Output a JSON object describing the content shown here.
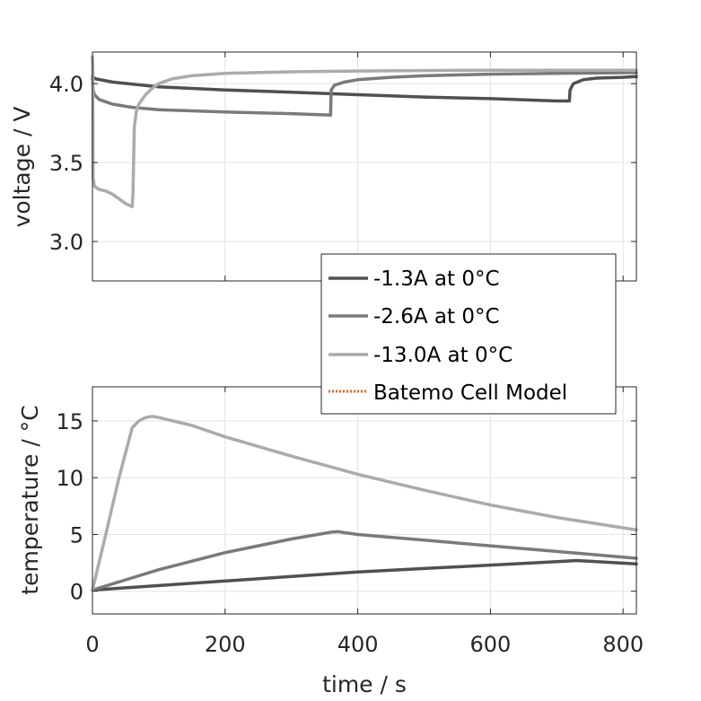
{
  "chart_data": [
    {
      "type": "line",
      "ylabel": "voltage / V",
      "xlim": [
        0,
        820
      ],
      "ylim": [
        2.75,
        4.2
      ],
      "yticks": [
        3.0,
        3.5,
        4.0
      ],
      "ytick_labels": [
        "3.0",
        "3.5",
        "4.0"
      ],
      "grid": true,
      "series": [
        {
          "name": "-1.3A at 0°C",
          "color": "#505050",
          "x": [
            0,
            1,
            5,
            30,
            100,
            200,
            300,
            400,
            500,
            600,
            700,
            719,
            720,
            725,
            740,
            760,
            800,
            820
          ],
          "y": [
            4.03,
            4.04,
            4.03,
            4.01,
            3.98,
            3.96,
            3.945,
            3.93,
            3.915,
            3.905,
            3.89,
            3.89,
            3.96,
            4.0,
            4.025,
            4.035,
            4.04,
            4.045
          ]
        },
        {
          "name": "-2.6A at 0°C",
          "color": "#7a7a7a",
          "x": [
            0,
            1,
            3,
            10,
            30,
            60,
            100,
            200,
            300,
            359,
            360,
            365,
            380,
            400,
            450,
            500,
            600,
            700,
            820
          ],
          "y": [
            4.05,
            3.96,
            3.93,
            3.9,
            3.87,
            3.85,
            3.835,
            3.82,
            3.81,
            3.8,
            3.96,
            3.99,
            4.01,
            4.025,
            4.04,
            4.05,
            4.06,
            4.065,
            4.07
          ]
        },
        {
          "name": "-13.0A at 0°C",
          "color": "#ababab",
          "x": [
            0,
            0.5,
            1,
            3,
            10,
            20,
            30,
            40,
            50,
            60,
            61,
            63,
            66,
            70,
            80,
            90,
            100,
            120,
            150,
            200,
            300,
            400,
            600,
            820
          ],
          "y": [
            4.17,
            4.1,
            3.4,
            3.35,
            3.33,
            3.32,
            3.3,
            3.27,
            3.24,
            3.22,
            3.3,
            3.72,
            3.82,
            3.87,
            3.93,
            3.97,
            4.0,
            4.03,
            4.05,
            4.065,
            4.075,
            4.08,
            4.085,
            4.085
          ]
        }
      ]
    },
    {
      "type": "line",
      "xlabel": "time / s",
      "ylabel": "temperature / °C",
      "xlim": [
        0,
        820
      ],
      "ylim": [
        -2,
        18
      ],
      "xticks": [
        0,
        200,
        400,
        600,
        800
      ],
      "xtick_labels": [
        "0",
        "200",
        "400",
        "600",
        "800"
      ],
      "yticks": [
        0,
        5,
        10,
        15
      ],
      "ytick_labels": [
        "0",
        "5",
        "10",
        "15"
      ],
      "grid": true,
      "series": [
        {
          "name": "-1.3A at 0°C",
          "color": "#505050",
          "x": [
            0,
            100,
            200,
            300,
            400,
            500,
            600,
            700,
            730,
            760,
            820
          ],
          "y": [
            0.1,
            0.5,
            0.9,
            1.3,
            1.7,
            2.0,
            2.3,
            2.6,
            2.7,
            2.6,
            2.4
          ]
        },
        {
          "name": "-2.6A at 0°C",
          "color": "#7a7a7a",
          "x": [
            0,
            50,
            100,
            200,
            300,
            360,
            370,
            400,
            500,
            600,
            700,
            820
          ],
          "y": [
            0.1,
            1.0,
            1.9,
            3.4,
            4.6,
            5.2,
            5.25,
            5.0,
            4.5,
            4.0,
            3.5,
            2.9
          ]
        },
        {
          "name": "-13.0A at 0°C",
          "color": "#ababab",
          "x": [
            0,
            20,
            40,
            60,
            70,
            80,
            90,
            100,
            150,
            200,
            300,
            400,
            500,
            600,
            700,
            820
          ],
          "y": [
            0.1,
            5.0,
            10.0,
            14.4,
            15.0,
            15.3,
            15.4,
            15.3,
            14.6,
            13.6,
            11.9,
            10.3,
            8.9,
            7.6,
            6.5,
            5.4
          ]
        }
      ]
    }
  ],
  "legend": {
    "location": "center-right",
    "entries": [
      {
        "label": "-1.3A at 0°C",
        "color": "#505050",
        "style": "solid"
      },
      {
        "label": "-2.6A at 0°C",
        "color": "#7a7a7a",
        "style": "solid"
      },
      {
        "label": "-13.0A at 0°C",
        "color": "#ababab",
        "style": "solid"
      },
      {
        "label": "Batemo Cell Model",
        "color": "#e8661e",
        "style": "dotted"
      }
    ]
  }
}
